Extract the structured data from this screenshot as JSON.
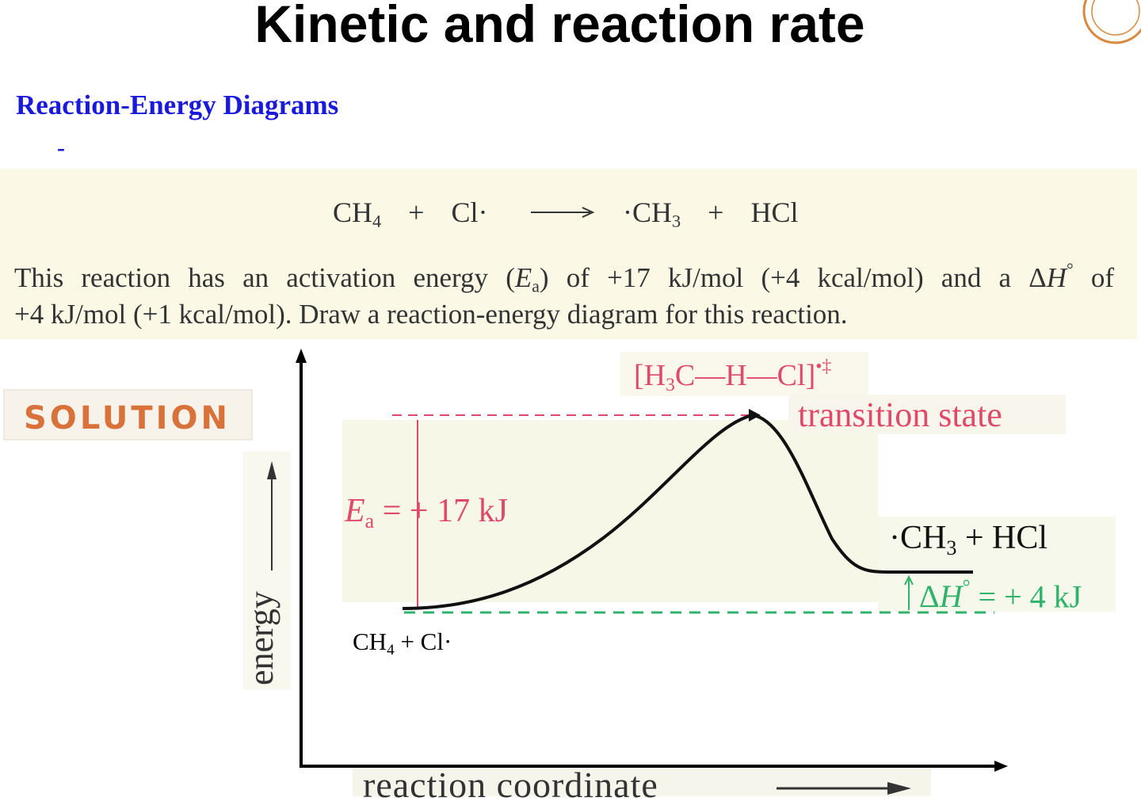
{
  "header": {
    "title": "Kinetic and reaction rate",
    "subtitle": "Reaction-Energy Diagrams",
    "bullet": "-"
  },
  "problem_box": {
    "equation": {
      "reactants": [
        {
          "text": "CH",
          "sub": "4"
        },
        {
          "text": "+"
        },
        {
          "text": "Cl·"
        }
      ],
      "products": [
        {
          "text": "·CH",
          "sub": "3"
        },
        {
          "text": "+"
        },
        {
          "text": "HCl"
        }
      ]
    },
    "lines": [
      [
        {
          "text": "This reaction has an activation energy ("
        },
        {
          "italic": "E",
          "sub": "a"
        },
        {
          "text": ") of +17 kJ/mol (+4 kcal/mol) and a Δ",
          "italic": "H",
          "sup": "°"
        },
        {
          "text": " of"
        }
      ],
      [
        {
          "text": "+4 kJ/mol (+1 kcal/mol). Draw a reaction-energy diagram for this reaction."
        }
      ]
    ]
  },
  "solution": {
    "label": "SOLUTION",
    "diagram": {
      "y_axis_label": "energy",
      "x_axis_label": "reaction coordinate",
      "ts_formula": [
        {
          "text": "[H",
          "sub": "3"
        },
        {
          "text": "C—H—Cl]",
          "sup": "•‡"
        }
      ],
      "ts_label": "transition state",
      "ea": [
        {
          "italic": "E",
          "sub": "a"
        },
        {
          "text": " = + 17 kJ"
        }
      ],
      "products": [
        {
          "text": "·CH",
          "sub": "3"
        },
        {
          "text": " + HCl"
        }
      ],
      "dh": [
        {
          "text": "Δ",
          "italic": "H",
          "sup": "°"
        },
        {
          "text": " = + 4 kJ"
        }
      ],
      "reactants": [
        {
          "text": "CH",
          "sub": "4"
        },
        {
          "text": " + Cl·"
        }
      ]
    }
  }
}
